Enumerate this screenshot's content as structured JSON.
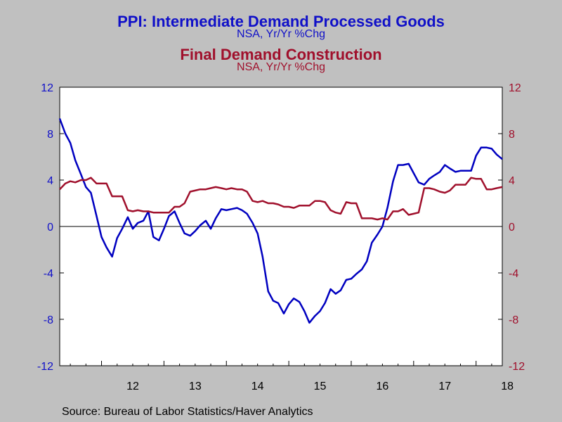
{
  "titles": {
    "series1_title": "PPI: Intermediate Demand Processed Goods",
    "series1_subtitle": "NSA, Yr/Yr %Chg",
    "series2_title": "Final Demand Construction",
    "series2_subtitle": "NSA, Yr/Yr %Chg"
  },
  "source": "Source:  Bureau of Labor Statistics/Haver Analytics",
  "colors": {
    "series1": "#0000c0",
    "series2": "#a0102c",
    "left_axis": "#1010c8",
    "right_axis": "#a0102c",
    "plot_bg": "#ffffff",
    "page_bg": "#c0c0c0"
  },
  "chart_data": {
    "type": "line",
    "x_tick_labels": [
      "12",
      "13",
      "14",
      "15",
      "16",
      "17",
      "18"
    ],
    "x_range_years": [
      2011.33,
      2018.42
    ],
    "ylim": [
      -12,
      12
    ],
    "y_ticks": [
      -12,
      -8,
      -4,
      0,
      4,
      8,
      12
    ],
    "y_tick_labels": [
      "-12",
      "-8",
      "-4",
      "0",
      "4",
      "8",
      "12"
    ],
    "grid": false,
    "zero_line": true,
    "series": [
      {
        "axis": "left",
        "x": [
          2011.33,
          2011.42,
          2011.5,
          2011.58,
          2011.67,
          2011.75,
          2011.83,
          2011.92,
          2012.0,
          2012.08,
          2012.17,
          2012.25,
          2012.33,
          2012.42,
          2012.5,
          2012.58,
          2012.67,
          2012.75,
          2012.83,
          2012.92,
          2013.0,
          2013.08,
          2013.17,
          2013.25,
          2013.33,
          2013.42,
          2013.5,
          2013.58,
          2013.67,
          2013.75,
          2013.83,
          2013.92,
          2014.0,
          2014.08,
          2014.17,
          2014.25,
          2014.33,
          2014.42,
          2014.5,
          2014.58,
          2014.67,
          2014.75,
          2014.83,
          2014.92,
          2015.0,
          2015.08,
          2015.17,
          2015.25,
          2015.33,
          2015.42,
          2015.5,
          2015.58,
          2015.67,
          2015.75,
          2015.83,
          2015.92,
          2016.0,
          2016.08,
          2016.17,
          2016.25,
          2016.33,
          2016.42,
          2016.5,
          2016.58,
          2016.67,
          2016.75,
          2016.83,
          2016.92,
          2017.0,
          2017.08,
          2017.17,
          2017.25,
          2017.33,
          2017.42,
          2017.5,
          2017.58,
          2017.67,
          2017.75,
          2017.83,
          2017.92,
          2018.0,
          2018.08,
          2018.17,
          2018.25,
          2018.33,
          2018.42
        ],
        "values": [
          9.3,
          8.0,
          7.2,
          5.7,
          4.5,
          3.4,
          2.9,
          0.9,
          -0.9,
          -1.8,
          -2.6,
          -1.0,
          -0.2,
          0.8,
          -0.2,
          0.3,
          0.5,
          1.3,
          -0.9,
          -1.2,
          -0.2,
          0.9,
          1.3,
          0.3,
          -0.6,
          -0.8,
          -0.4,
          0.1,
          0.5,
          -0.2,
          0.7,
          1.5,
          1.4,
          1.5,
          1.6,
          1.4,
          1.1,
          0.3,
          -0.6,
          -2.6,
          -5.6,
          -6.4,
          -6.6,
          -7.5,
          -6.7,
          -6.2,
          -6.5,
          -7.3,
          -8.3,
          -7.7,
          -7.3,
          -6.6,
          -5.4,
          -5.8,
          -5.5,
          -4.6,
          -4.5,
          -4.1,
          -3.7,
          -3.0,
          -1.4,
          -0.7,
          0.0,
          1.6,
          3.9,
          5.3,
          5.3,
          5.4,
          4.6,
          3.8,
          3.6,
          4.1,
          4.4,
          4.7,
          5.3,
          5.0,
          4.7,
          4.8,
          4.8,
          4.8,
          6.1,
          6.8,
          6.8,
          6.7,
          6.2,
          5.8
        ]
      },
      {
        "axis": "right",
        "x": [
          2011.33,
          2011.42,
          2011.5,
          2011.58,
          2011.67,
          2011.75,
          2011.83,
          2011.92,
          2012.0,
          2012.08,
          2012.17,
          2012.25,
          2012.33,
          2012.42,
          2012.5,
          2012.58,
          2012.67,
          2012.75,
          2012.83,
          2012.92,
          2013.0,
          2013.08,
          2013.17,
          2013.25,
          2013.33,
          2013.42,
          2013.5,
          2013.58,
          2013.67,
          2013.75,
          2013.83,
          2013.92,
          2014.0,
          2014.08,
          2014.17,
          2014.25,
          2014.33,
          2014.42,
          2014.5,
          2014.58,
          2014.67,
          2014.75,
          2014.83,
          2014.92,
          2015.0,
          2015.08,
          2015.17,
          2015.25,
          2015.33,
          2015.42,
          2015.5,
          2015.58,
          2015.67,
          2015.75,
          2015.83,
          2015.92,
          2016.0,
          2016.08,
          2016.17,
          2016.25,
          2016.33,
          2016.42,
          2016.5,
          2016.58,
          2016.67,
          2016.75,
          2016.83,
          2016.92,
          2017.0,
          2017.08,
          2017.17,
          2017.25,
          2017.33,
          2017.42,
          2017.5,
          2017.58,
          2017.67,
          2017.75,
          2017.83,
          2017.92,
          2018.0,
          2018.08,
          2018.17,
          2018.25,
          2018.33,
          2018.42
        ],
        "values": [
          3.2,
          3.7,
          3.9,
          3.8,
          4.0,
          4.0,
          4.2,
          3.7,
          3.7,
          3.7,
          2.6,
          2.6,
          2.6,
          1.4,
          1.3,
          1.4,
          1.3,
          1.3,
          1.2,
          1.2,
          1.2,
          1.2,
          1.7,
          1.7,
          2.0,
          3.0,
          3.1,
          3.2,
          3.2,
          3.3,
          3.4,
          3.3,
          3.2,
          3.3,
          3.2,
          3.2,
          3.0,
          2.2,
          2.1,
          2.2,
          2.0,
          2.0,
          1.9,
          1.7,
          1.7,
          1.6,
          1.8,
          1.8,
          1.8,
          2.2,
          2.2,
          2.1,
          1.4,
          1.2,
          1.1,
          2.1,
          2.0,
          2.0,
          0.7,
          0.7,
          0.7,
          0.6,
          0.7,
          0.6,
          1.3,
          1.3,
          1.5,
          1.0,
          1.1,
          1.2,
          3.3,
          3.3,
          3.2,
          3.0,
          2.9,
          3.1,
          3.6,
          3.6,
          3.6,
          4.2,
          4.1,
          4.1,
          3.2,
          3.2,
          3.3,
          3.4
        ]
      }
    ]
  }
}
